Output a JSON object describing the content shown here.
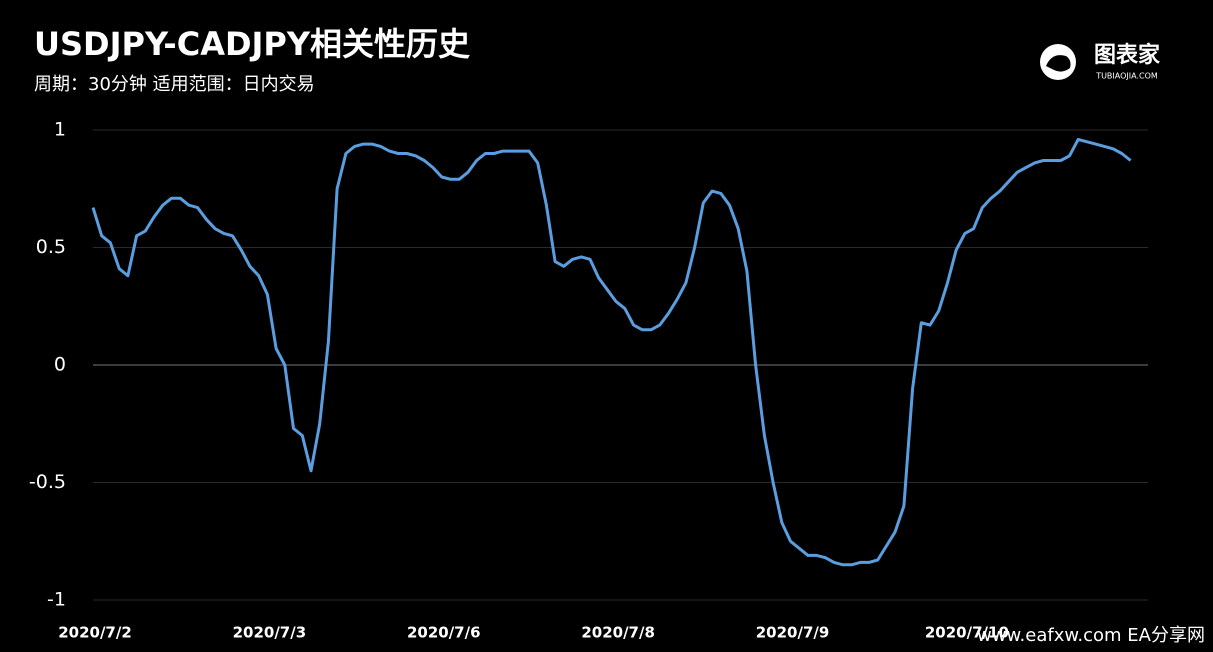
{
  "chart_data": {
    "type": "line",
    "title": "USDJPY-CADJPY相关性历史",
    "subtitle": "周期：30分钟 适用范围：日内交易",
    "x": [
      0,
      1,
      2,
      3,
      4,
      5,
      6,
      7,
      8,
      9,
      10,
      11,
      12,
      13,
      14,
      15,
      16,
      17,
      18,
      19,
      20,
      21,
      22,
      23,
      24,
      25,
      26,
      27,
      28,
      29,
      30,
      31,
      32,
      33,
      34,
      35,
      36,
      37,
      38,
      39,
      40,
      41,
      42,
      43,
      44,
      45,
      46,
      47,
      48,
      49,
      50,
      51,
      52,
      53,
      54,
      55,
      56,
      57,
      58,
      59,
      60,
      61,
      62,
      63,
      64,
      65,
      66,
      67,
      68,
      69,
      70,
      71,
      72,
      73,
      74,
      75,
      76,
      77,
      78,
      79,
      80,
      81,
      82,
      83,
      84,
      85,
      86,
      87,
      88,
      89,
      90,
      91,
      92,
      93,
      94,
      95,
      96,
      97,
      98,
      99,
      100,
      101,
      102,
      103,
      104,
      105,
      106,
      107,
      108,
      109,
      110,
      111,
      112,
      113,
      114,
      115,
      116,
      117,
      118,
      119
    ],
    "values": [
      0.67,
      0.55,
      0.52,
      0.41,
      0.38,
      0.55,
      0.57,
      0.63,
      0.68,
      0.71,
      0.71,
      0.68,
      0.67,
      0.62,
      0.58,
      0.56,
      0.55,
      0.49,
      0.42,
      0.38,
      0.3,
      0.07,
      0.0,
      -0.27,
      -0.3,
      -0.45,
      -0.25,
      0.1,
      0.75,
      0.9,
      0.93,
      0.94,
      0.94,
      0.93,
      0.91,
      0.9,
      0.9,
      0.89,
      0.87,
      0.84,
      0.8,
      0.79,
      0.79,
      0.82,
      0.87,
      0.9,
      0.9,
      0.91,
      0.91,
      0.91,
      0.91,
      0.86,
      0.68,
      0.44,
      0.42,
      0.45,
      0.46,
      0.45,
      0.37,
      0.32,
      0.27,
      0.24,
      0.17,
      0.15,
      0.15,
      0.17,
      0.22,
      0.28,
      0.35,
      0.5,
      0.69,
      0.74,
      0.73,
      0.68,
      0.58,
      0.4,
      0.0,
      -0.3,
      -0.5,
      -0.67,
      -0.75,
      -0.78,
      -0.81,
      -0.81,
      -0.82,
      -0.84,
      -0.85,
      -0.85,
      -0.84,
      -0.84,
      -0.83,
      -0.77,
      -0.71,
      -0.6,
      -0.1,
      0.18,
      0.17,
      0.23,
      0.35,
      0.49,
      0.56,
      0.58,
      0.67,
      0.71,
      0.74,
      0.78,
      0.82,
      0.84,
      0.86,
      0.87,
      0.87,
      0.87,
      0.89,
      0.96,
      0.95,
      0.94,
      0.93,
      0.92,
      0.9,
      0.87
    ],
    "color": "#5b9ee0",
    "xlim": [
      0,
      121
    ],
    "xticks": [
      {
        "value": 0,
        "label": "2020/7/2"
      },
      {
        "value": 20,
        "label": "2020/7/3"
      },
      {
        "value": 40,
        "label": "2020/7/6"
      },
      {
        "value": 60,
        "label": "2020/7/8"
      },
      {
        "value": 80,
        "label": "2020/7/9"
      },
      {
        "value": 100,
        "label": "2020/7/10"
      }
    ],
    "ylim": [
      -1,
      1
    ],
    "yticks": [
      1,
      0.5,
      0,
      -0.5,
      -1
    ],
    "grid": true
  },
  "logo": {
    "name": "图表家",
    "url": "TUBIAOJIA.COM"
  },
  "watermark": "www.eafxw.com  EA分享网"
}
